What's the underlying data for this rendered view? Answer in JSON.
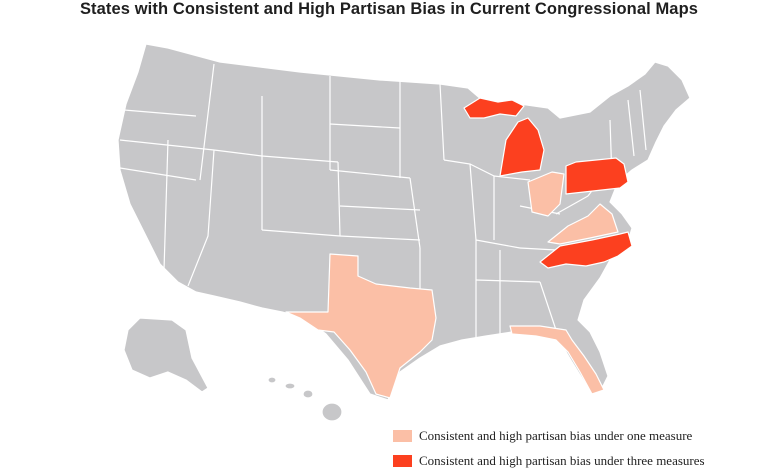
{
  "title": "States with Consistent and High Partisan Bias in Current Congressional Maps",
  "colors": {
    "base": "#c7c7c9",
    "one_measure": "#fbbfa6",
    "three_measures": "#fc401f",
    "border": "#ffffff"
  },
  "legend": [
    {
      "label": "Consistent and high partisan bias under one measure",
      "category": "one_measure"
    },
    {
      "label": "Consistent and high partisan bias under three measures",
      "category": "three_measures"
    }
  ],
  "states": {
    "one_measure": [
      "Texas",
      "Ohio",
      "Virginia",
      "Florida"
    ],
    "three_measures": [
      "Michigan",
      "Pennsylvania",
      "North Carolina"
    ]
  }
}
